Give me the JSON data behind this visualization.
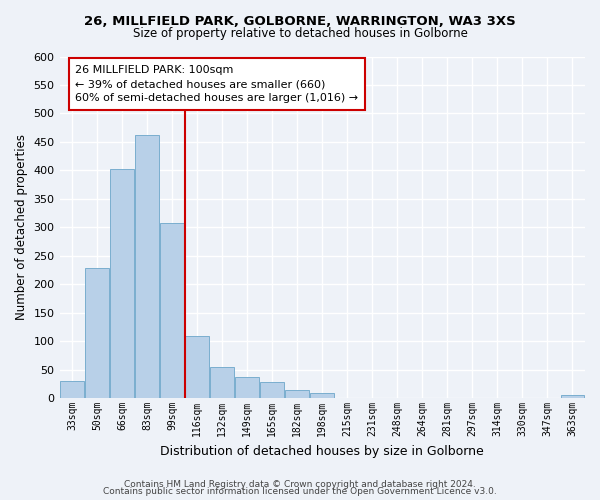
{
  "title": "26, MILLFIELD PARK, GOLBORNE, WARRINGTON, WA3 3XS",
  "subtitle": "Size of property relative to detached houses in Golborne",
  "xlabel": "Distribution of detached houses by size in Golborne",
  "ylabel": "Number of detached properties",
  "bar_labels": [
    "33sqm",
    "50sqm",
    "66sqm",
    "83sqm",
    "99sqm",
    "116sqm",
    "132sqm",
    "149sqm",
    "165sqm",
    "182sqm",
    "198sqm",
    "215sqm",
    "231sqm",
    "248sqm",
    "264sqm",
    "281sqm",
    "297sqm",
    "314sqm",
    "330sqm",
    "347sqm",
    "363sqm"
  ],
  "bar_values": [
    30,
    228,
    403,
    463,
    307,
    110,
    54,
    37,
    29,
    14,
    9,
    0,
    0,
    0,
    0,
    0,
    0,
    0,
    0,
    0,
    5
  ],
  "bar_color": "#b8d0e8",
  "bar_edge_color": "#7aaecf",
  "vline_color": "#cc0000",
  "annotation_title": "26 MILLFIELD PARK: 100sqm",
  "annotation_line1": "← 39% of detached houses are smaller (660)",
  "annotation_line2": "60% of semi-detached houses are larger (1,016) →",
  "annotation_box_color": "#ffffff",
  "annotation_box_edge": "#cc0000",
  "ylim": [
    0,
    600
  ],
  "yticks": [
    0,
    50,
    100,
    150,
    200,
    250,
    300,
    350,
    400,
    450,
    500,
    550,
    600
  ],
  "footer1": "Contains HM Land Registry data © Crown copyright and database right 2024.",
  "footer2": "Contains public sector information licensed under the Open Government Licence v3.0.",
  "background_color": "#eef2f8",
  "grid_color": "#ffffff"
}
